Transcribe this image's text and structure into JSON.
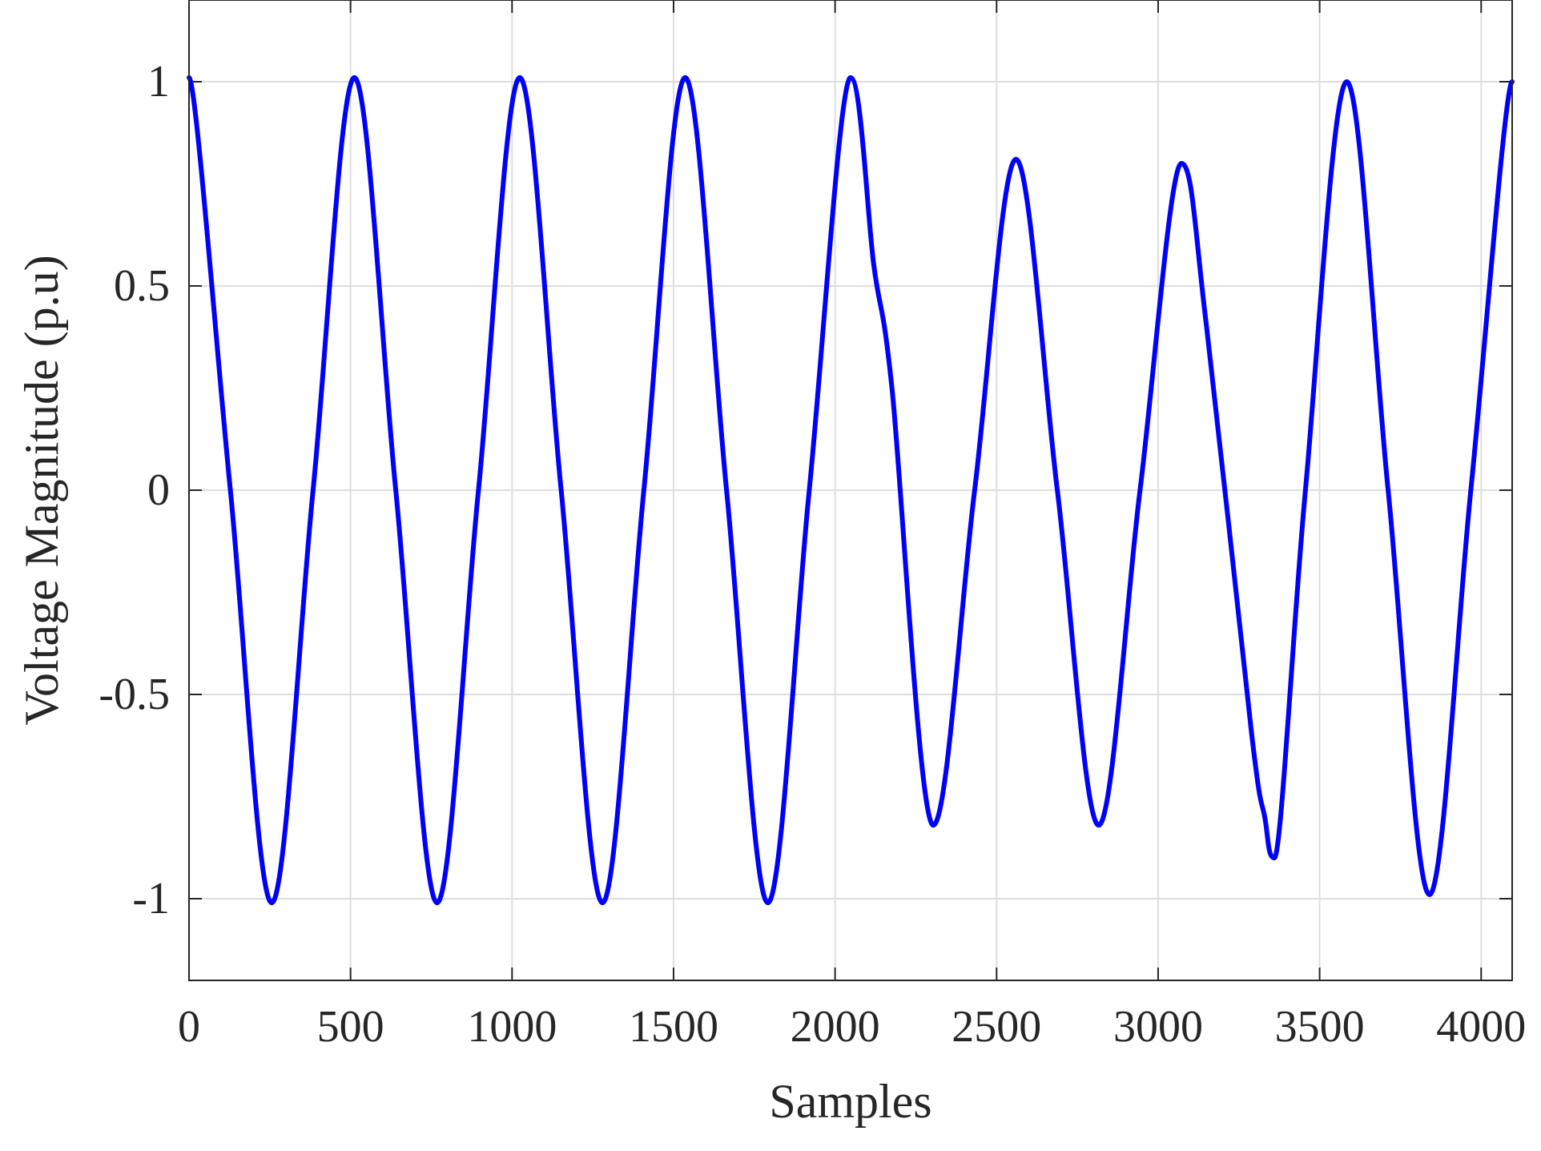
{
  "chart_data": {
    "type": "line",
    "title": "",
    "xlabel": "Samples",
    "ylabel": "Voltage Magnitude (p.u)",
    "xlim": [
      0,
      4096
    ],
    "ylim": [
      -1.2,
      1.2
    ],
    "xticks": [
      0,
      500,
      1000,
      1500,
      2000,
      2500,
      3000,
      3500,
      4000
    ],
    "xtick_labels": [
      "0",
      "500",
      "1000",
      "1500",
      "2000",
      "2500",
      "3000",
      "3500",
      "4000"
    ],
    "yticks": [
      -1,
      -0.5,
      0,
      0.5,
      1
    ],
    "ytick_labels": [
      "-1",
      "-0.5",
      "0",
      "0.5",
      "1"
    ],
    "grid": true,
    "legend": false,
    "series": [
      {
        "color": "#0000ff",
        "x": [
          0,
          128,
          256,
          384,
          512,
          640,
          768,
          896,
          1024,
          1152,
          1280,
          1408,
          1536,
          1664,
          1792,
          1920,
          2048,
          2120,
          2176,
          2304,
          2432,
          2560,
          2688,
          2816,
          2944,
          3072,
          3150,
          3290,
          3330,
          3360,
          3456,
          3584,
          3712,
          3840,
          3968,
          4096
        ],
        "y": [
          1.01,
          0.0,
          -1.01,
          0.0,
          1.01,
          0.0,
          -1.01,
          0.0,
          1.01,
          0.0,
          -1.01,
          0.0,
          1.01,
          0.0,
          -1.01,
          0.0,
          1.01,
          0.55,
          0.25,
          -0.82,
          0.0,
          0.81,
          0.0,
          -0.82,
          0.0,
          0.8,
          0.4,
          -0.6,
          -0.8,
          -0.9,
          0.0,
          1.0,
          0.0,
          -0.99,
          0.0,
          1.0
        ]
      }
    ]
  }
}
